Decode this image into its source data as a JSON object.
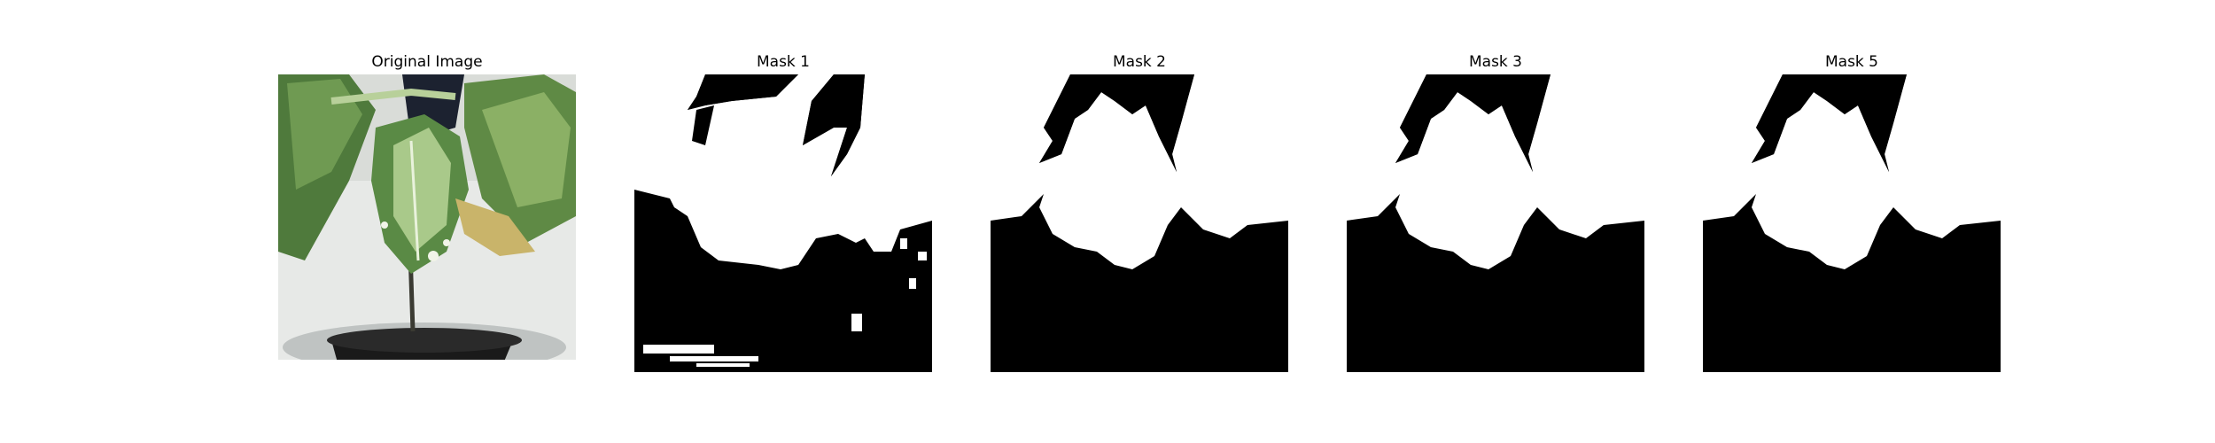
{
  "figure": {
    "panels": [
      {
        "title": "Original Image",
        "kind": "photo"
      },
      {
        "title": "Mask 1",
        "kind": "mask-noisy"
      },
      {
        "title": "Mask 2",
        "kind": "mask-clean"
      },
      {
        "title": "Mask 3",
        "kind": "mask-clean"
      },
      {
        "title": "Mask 5",
        "kind": "mask-clean"
      }
    ]
  },
  "colors": {
    "background": "#ffffff",
    "mask_fg": "#ffffff",
    "mask_bg": "#000000",
    "leaf_dark": "#3f6b34",
    "leaf_light": "#9fbf78",
    "wall": "#e6e8e6"
  }
}
